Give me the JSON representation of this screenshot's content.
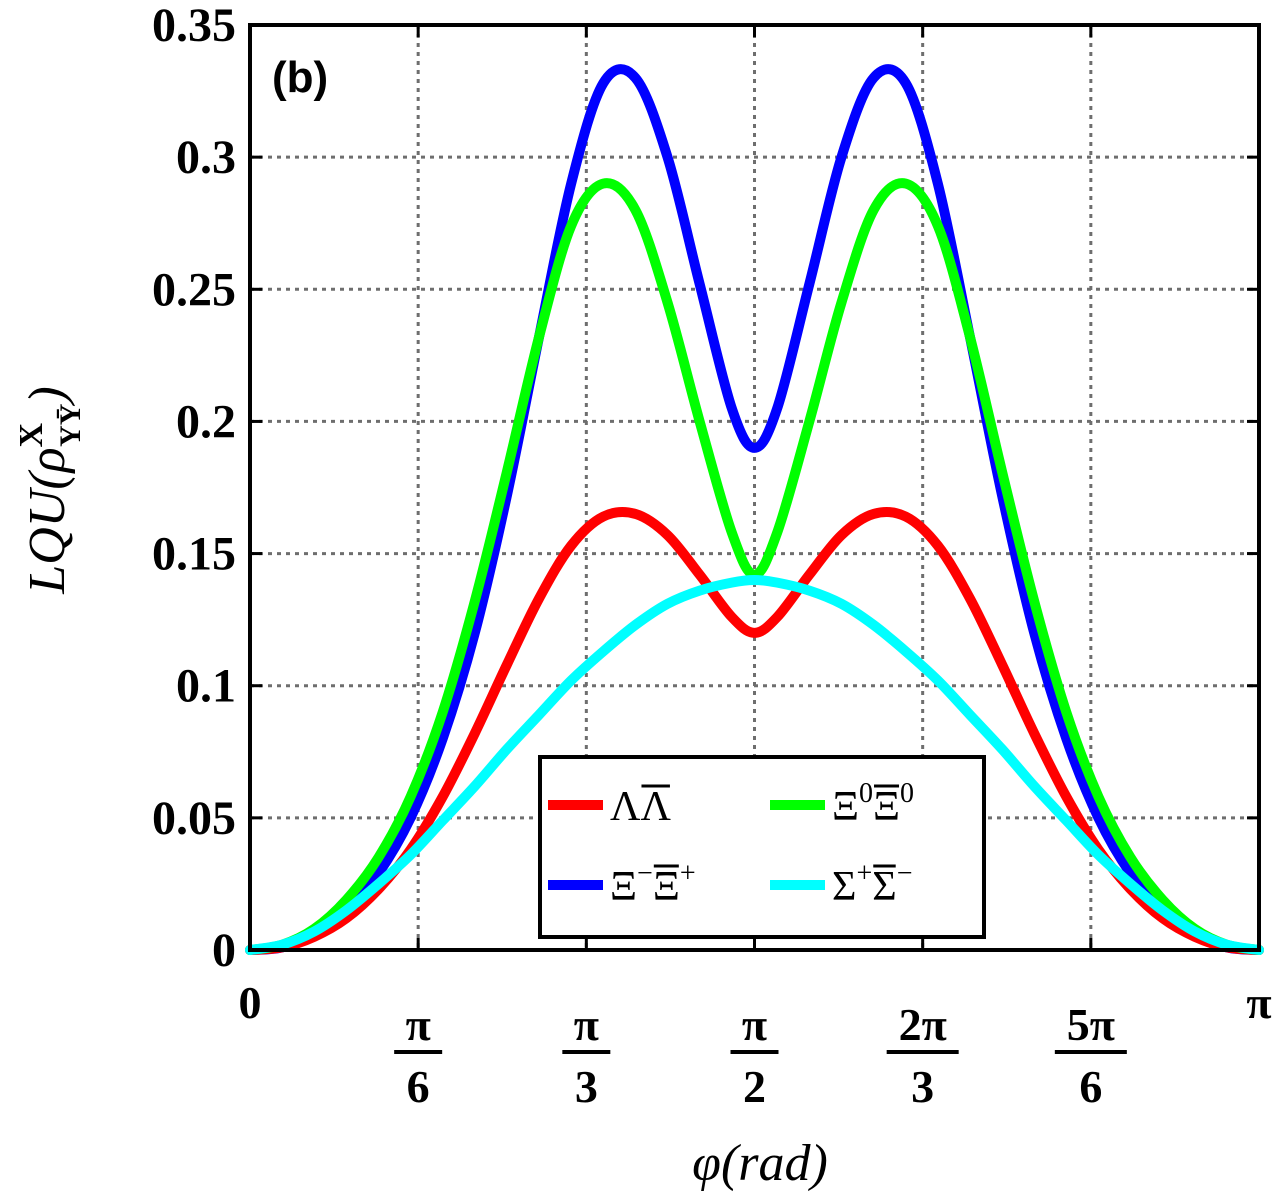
{
  "panel_label": "(b)",
  "chart_data": {
    "type": "line",
    "xlabel": "φ(rad)",
    "ylabel": "LQU(ρ^X_YȲ)",
    "xlim": [
      0,
      3.14159
    ],
    "ylim": [
      0,
      0.35
    ],
    "grid": true,
    "legend_position": "bottom-center",
    "x_ticks": [
      {
        "value": 0,
        "num": "0",
        "den": ""
      },
      {
        "value": 0.5236,
        "num": "π",
        "den": "6"
      },
      {
        "value": 1.0472,
        "num": "π",
        "den": "3"
      },
      {
        "value": 1.5708,
        "num": "π",
        "den": "2"
      },
      {
        "value": 2.0944,
        "num": "2π",
        "den": "3"
      },
      {
        "value": 2.618,
        "num": "5π",
        "den": "6"
      },
      {
        "value": 3.14159,
        "num": "π",
        "den": ""
      }
    ],
    "y_ticks": [
      {
        "value": 0,
        "label": "0"
      },
      {
        "value": 0.05,
        "label": "0.05"
      },
      {
        "value": 0.1,
        "label": "0.1"
      },
      {
        "value": 0.15,
        "label": "0.15"
      },
      {
        "value": 0.2,
        "label": "0.2"
      },
      {
        "value": 0.25,
        "label": "0.25"
      },
      {
        "value": 0.3,
        "label": "0.3"
      },
      {
        "value": 0.35,
        "label": "0.35"
      }
    ],
    "series": [
      {
        "name": "ΛΛ̄",
        "color": "#ff0000",
        "legend": {
          "main": "ΛΛ",
          "bar_on": "second"
        },
        "x": [
          0,
          0.1,
          0.2,
          0.3,
          0.4,
          0.5,
          0.6,
          0.7,
          0.8,
          0.9,
          1.0,
          1.1,
          1.2,
          1.3,
          1.4,
          1.5,
          1.5708,
          1.6416,
          1.7416,
          1.8416,
          1.9416,
          2.0416,
          2.1416,
          2.2416,
          2.3416,
          2.4416,
          2.5416,
          2.6416,
          2.7416,
          2.8416,
          2.9416,
          3.0416,
          3.1416
        ],
        "y": [
          0,
          0.001,
          0.005,
          0.012,
          0.023,
          0.038,
          0.058,
          0.082,
          0.108,
          0.133,
          0.153,
          0.164,
          0.165,
          0.157,
          0.142,
          0.126,
          0.12,
          0.126,
          0.142,
          0.157,
          0.165,
          0.164,
          0.153,
          0.133,
          0.108,
          0.082,
          0.058,
          0.038,
          0.023,
          0.012,
          0.005,
          0.001,
          0
        ]
      },
      {
        "name": "Ξ⁰Ξ̄⁰",
        "color": "#00ff00",
        "legend": {
          "main": "ΞΞ",
          "sup1": "0",
          "sup2": "0",
          "bar_on": "second"
        },
        "x": [
          0,
          0.1,
          0.2,
          0.3,
          0.4,
          0.5,
          0.6,
          0.7,
          0.8,
          0.9,
          1.0,
          1.1,
          1.2,
          1.3,
          1.4,
          1.5,
          1.5708,
          1.6416,
          1.7416,
          1.8416,
          1.9416,
          2.0416,
          2.1416,
          2.2416,
          2.3416,
          2.4416,
          2.5416,
          2.6416,
          2.7416,
          2.8416,
          2.9416,
          3.0416,
          3.1416
        ],
        "y": [
          0,
          0.002,
          0.008,
          0.019,
          0.035,
          0.058,
          0.09,
          0.132,
          0.181,
          0.232,
          0.274,
          0.29,
          0.28,
          0.245,
          0.2,
          0.158,
          0.142,
          0.158,
          0.2,
          0.245,
          0.28,
          0.29,
          0.274,
          0.232,
          0.181,
          0.132,
          0.09,
          0.058,
          0.035,
          0.019,
          0.008,
          0.002,
          0
        ]
      },
      {
        "name": "Ξ⁻Ξ̄⁺",
        "color": "#0000ff",
        "legend": {
          "main": "ΞΞ",
          "sup1": "−",
          "sup2": "+",
          "bar_on": "second"
        },
        "x": [
          0,
          0.1,
          0.2,
          0.3,
          0.4,
          0.5,
          0.6,
          0.7,
          0.8,
          0.9,
          1.0,
          1.1,
          1.2,
          1.3,
          1.4,
          1.5,
          1.5708,
          1.6416,
          1.7416,
          1.8416,
          1.9416,
          2.0416,
          2.1416,
          2.2416,
          2.3416,
          2.4416,
          2.5416,
          2.6416,
          2.7416,
          2.8416,
          2.9416,
          3.0416,
          3.1416
        ],
        "y": [
          0,
          0.001,
          0.006,
          0.015,
          0.029,
          0.05,
          0.08,
          0.12,
          0.172,
          0.232,
          0.29,
          0.328,
          0.33,
          0.3,
          0.252,
          0.205,
          0.19,
          0.205,
          0.252,
          0.3,
          0.33,
          0.328,
          0.29,
          0.232,
          0.172,
          0.12,
          0.08,
          0.05,
          0.029,
          0.015,
          0.006,
          0.001,
          0
        ]
      },
      {
        "name": "Σ⁺Σ̄⁻",
        "color": "#00ffff",
        "legend": {
          "main": "ΣΣ",
          "sup1": "+",
          "sup2": "−",
          "bar_on": "second"
        },
        "x": [
          0,
          0.1,
          0.2,
          0.3,
          0.4,
          0.5,
          0.6,
          0.7,
          0.8,
          0.9,
          1.0,
          1.1,
          1.2,
          1.3,
          1.4,
          1.5,
          1.5708,
          1.6416,
          1.7416,
          1.8416,
          1.9416,
          2.0416,
          2.1416,
          2.2416,
          2.3416,
          2.4416,
          2.5416,
          2.6416,
          2.7416,
          2.8416,
          2.9416,
          3.0416,
          3.1416
        ],
        "y": [
          0,
          0.002,
          0.007,
          0.015,
          0.025,
          0.036,
          0.049,
          0.062,
          0.076,
          0.089,
          0.102,
          0.113,
          0.123,
          0.131,
          0.136,
          0.139,
          0.14,
          0.139,
          0.136,
          0.131,
          0.123,
          0.113,
          0.102,
          0.089,
          0.076,
          0.062,
          0.049,
          0.036,
          0.025,
          0.015,
          0.007,
          0.002,
          0
        ]
      }
    ]
  }
}
